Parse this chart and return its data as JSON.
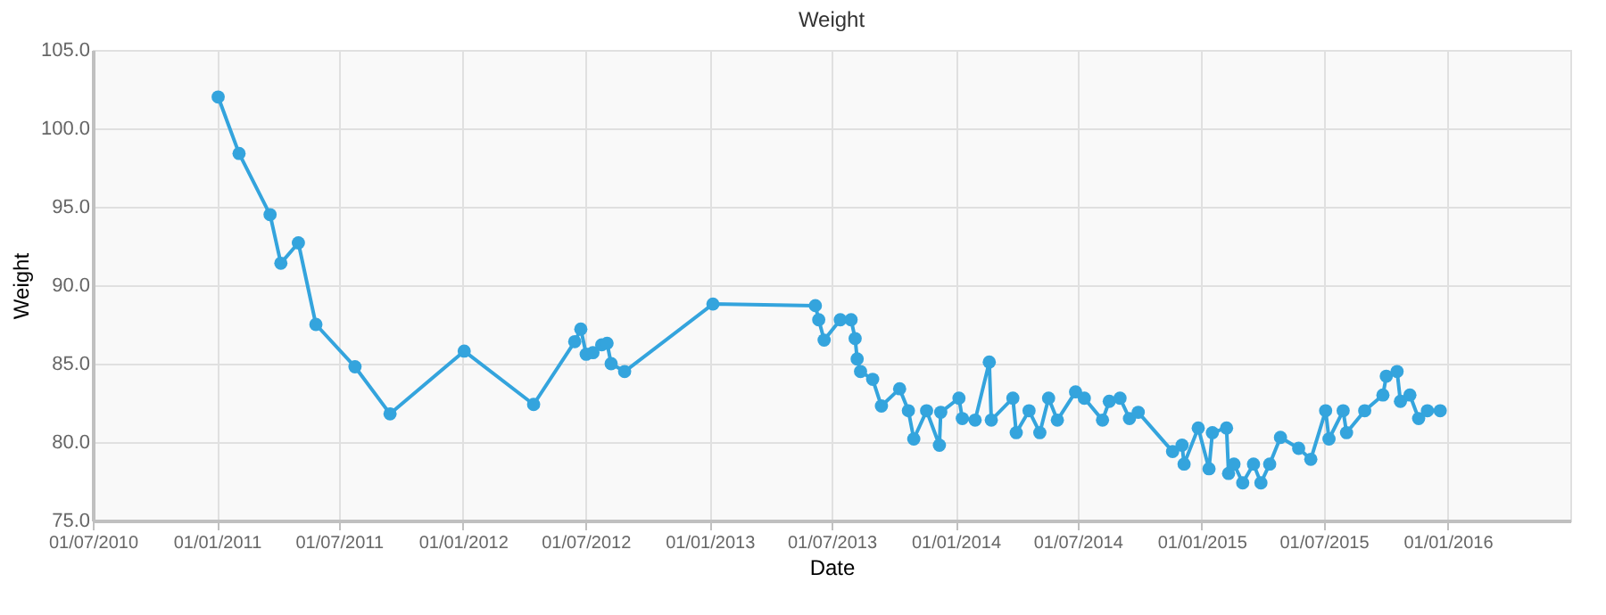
{
  "chart_data": {
    "type": "line",
    "title": "Weight",
    "xlabel": "Date",
    "ylabel": "Weight",
    "x": [
      "2011-01-03",
      "2011-02-03",
      "2011-03-21",
      "2011-04-06",
      "2011-05-02",
      "2011-05-28",
      "2011-07-25",
      "2011-09-15",
      "2012-01-03",
      "2012-04-15",
      "2012-06-15",
      "2012-06-24",
      "2012-07-02",
      "2012-07-12",
      "2012-07-25",
      "2012-08-02",
      "2012-08-08",
      "2012-08-28",
      "2013-01-06",
      "2013-06-07",
      "2013-06-12",
      "2013-06-20",
      "2013-07-14",
      "2013-07-30",
      "2013-08-05",
      "2013-08-08",
      "2013-08-13",
      "2013-08-31",
      "2013-09-13",
      "2013-10-10",
      "2013-10-23",
      "2013-10-31",
      "2013-11-19",
      "2013-12-08",
      "2013-12-10",
      "2014-01-06",
      "2014-01-11",
      "2014-01-30",
      "2014-02-20",
      "2014-02-23",
      "2014-03-27",
      "2014-04-01",
      "2014-04-20",
      "2014-05-06",
      "2014-05-19",
      "2014-06-01",
      "2014-06-28",
      "2014-07-11",
      "2014-08-07",
      "2014-08-17",
      "2014-09-02",
      "2014-09-16",
      "2014-09-29",
      "2014-11-19",
      "2014-12-03",
      "2014-12-06",
      "2014-12-27",
      "2015-01-12",
      "2015-01-17",
      "2015-02-07",
      "2015-02-10",
      "2015-02-18",
      "2015-03-03",
      "2015-03-19",
      "2015-03-30",
      "2015-04-12",
      "2015-04-28",
      "2015-05-25",
      "2015-06-12",
      "2015-07-04",
      "2015-07-09",
      "2015-07-30",
      "2015-08-04",
      "2015-08-31",
      "2015-09-27",
      "2015-10-02",
      "2015-10-18",
      "2015-10-23",
      "2015-11-06",
      "2015-11-19",
      "2015-12-02",
      "2015-12-21"
    ],
    "series": [
      {
        "color": "#34a4dd",
        "values": [
          102.0,
          98.4,
          94.5,
          91.4,
          92.7,
          87.5,
          84.8,
          81.8,
          85.8,
          82.4,
          86.4,
          87.2,
          85.6,
          85.7,
          86.2,
          86.3,
          85.0,
          84.5,
          88.8,
          88.7,
          87.8,
          86.5,
          87.8,
          87.8,
          86.6,
          85.3,
          84.5,
          84.0,
          82.3,
          83.4,
          82.0,
          80.2,
          82.0,
          79.8,
          81.9,
          82.8,
          81.5,
          81.4,
          85.1,
          81.4,
          82.8,
          80.6,
          82.0,
          80.6,
          82.8,
          81.4,
          83.2,
          82.8,
          81.4,
          82.6,
          82.8,
          81.5,
          81.9,
          79.4,
          79.8,
          78.6,
          80.9,
          78.3,
          80.6,
          80.9,
          78.0,
          78.6,
          77.4,
          78.6,
          77.4,
          78.6,
          80.3,
          79.6,
          78.9,
          82.0,
          80.2,
          82.0,
          80.6,
          82.0,
          83.0,
          84.2,
          84.5,
          82.6,
          83.0,
          81.5,
          82.0,
          82.0
        ]
      }
    ],
    "xlim": [
      "2010-07-01",
      "2016-07-01"
    ],
    "xticks": [
      {
        "value": "2010-07-01",
        "label": "01/07/2010"
      },
      {
        "value": "2011-01-01",
        "label": "01/01/2011"
      },
      {
        "value": "2011-07-01",
        "label": "01/07/2011"
      },
      {
        "value": "2012-01-01",
        "label": "01/01/2012"
      },
      {
        "value": "2012-07-01",
        "label": "01/07/2012"
      },
      {
        "value": "2013-01-01",
        "label": "01/01/2013"
      },
      {
        "value": "2013-07-01",
        "label": "01/07/2013"
      },
      {
        "value": "2014-01-01",
        "label": "01/01/2014"
      },
      {
        "value": "2014-07-01",
        "label": "01/07/2014"
      },
      {
        "value": "2015-01-01",
        "label": "01/01/2015"
      },
      {
        "value": "2015-07-01",
        "label": "01/07/2015"
      },
      {
        "value": "2016-01-01",
        "label": "01/01/2016"
      }
    ],
    "ylim": [
      75,
      105
    ],
    "yticks": [
      {
        "value": 75,
        "label": "75.0"
      },
      {
        "value": 80,
        "label": "80.0"
      },
      {
        "value": 85,
        "label": "85.0"
      },
      {
        "value": 90,
        "label": "90.0"
      },
      {
        "value": 95,
        "label": "95.0"
      },
      {
        "value": 100,
        "label": "100.0"
      },
      {
        "value": 105,
        "label": "105.0"
      }
    ],
    "grid": true,
    "marker": "circle",
    "line_style": "solid",
    "legend": false
  }
}
